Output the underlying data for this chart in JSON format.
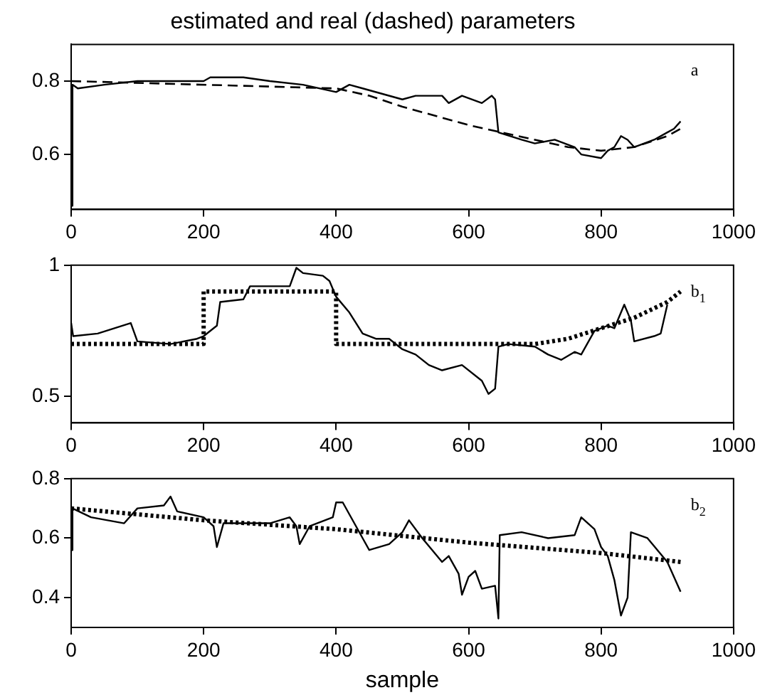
{
  "chart_data": [
    {
      "type": "line",
      "title": "estimated and real (dashed) parameters",
      "annotations": [
        "a"
      ],
      "xlim": [
        0,
        1000
      ],
      "xticks": [
        0,
        200,
        400,
        600,
        800,
        1000
      ],
      "ylim": [
        0.45,
        0.9
      ],
      "yticks": [
        0.6,
        0.8
      ],
      "grid": false,
      "legend": false,
      "series": [
        {
          "color": "#000000",
          "line_style": "solid",
          "x": [
            0,
            2,
            10,
            50,
            100,
            200,
            210,
            260,
            300,
            350,
            400,
            420,
            440,
            500,
            520,
            560,
            570,
            590,
            620,
            635,
            640,
            645,
            680,
            700,
            730,
            760,
            770,
            800,
            810,
            820,
            830,
            840,
            850,
            880,
            900,
            910,
            920
          ],
          "values": [
            0.46,
            0.79,
            0.78,
            0.79,
            0.8,
            0.8,
            0.81,
            0.81,
            0.8,
            0.79,
            0.77,
            0.79,
            0.78,
            0.75,
            0.76,
            0.76,
            0.74,
            0.76,
            0.74,
            0.76,
            0.75,
            0.66,
            0.64,
            0.63,
            0.64,
            0.62,
            0.6,
            0.59,
            0.61,
            0.62,
            0.65,
            0.64,
            0.62,
            0.64,
            0.66,
            0.67,
            0.69
          ]
        },
        {
          "color": "#000000",
          "line_style": "dashed",
          "x": [
            0,
            400,
            450,
            500,
            600,
            700,
            750,
            800,
            850,
            900,
            920
          ],
          "values": [
            0.8,
            0.78,
            0.76,
            0.73,
            0.68,
            0.64,
            0.62,
            0.61,
            0.62,
            0.65,
            0.67
          ]
        }
      ]
    },
    {
      "type": "line",
      "annotations": [
        "b$_{1}$"
      ],
      "xlim": [
        0,
        1000
      ],
      "xticks": [
        0,
        200,
        400,
        600,
        800,
        1000
      ],
      "ylim": [
        0.4,
        1
      ],
      "yticks": [
        0.5,
        1
      ],
      "grid": false,
      "legend": false,
      "series": [
        {
          "color": "#000000",
          "line_style": "solid",
          "x": [
            0,
            3,
            40,
            90,
            100,
            150,
            190,
            200,
            220,
            225,
            260,
            270,
            330,
            340,
            350,
            380,
            390,
            400,
            420,
            440,
            460,
            480,
            500,
            520,
            540,
            560,
            590,
            620,
            630,
            640,
            645,
            660,
            700,
            720,
            740,
            760,
            770,
            790,
            810,
            820,
            835,
            845,
            850,
            880,
            890,
            900
          ],
          "values": [
            0.78,
            0.73,
            0.74,
            0.78,
            0.71,
            0.7,
            0.72,
            0.73,
            0.77,
            0.86,
            0.87,
            0.92,
            0.92,
            0.99,
            0.97,
            0.96,
            0.94,
            0.88,
            0.82,
            0.74,
            0.72,
            0.72,
            0.68,
            0.66,
            0.62,
            0.6,
            0.62,
            0.56,
            0.51,
            0.53,
            0.69,
            0.7,
            0.69,
            0.66,
            0.64,
            0.67,
            0.66,
            0.75,
            0.77,
            0.76,
            0.85,
            0.79,
            0.71,
            0.73,
            0.74,
            0.85
          ]
        },
        {
          "color": "#000000",
          "line_style": "dotted",
          "x": [
            0,
            200,
            200,
            400,
            400,
            700,
            750,
            800,
            850,
            900,
            920
          ],
          "values": [
            0.7,
            0.7,
            0.9,
            0.9,
            0.7,
            0.7,
            0.72,
            0.76,
            0.8,
            0.86,
            0.9
          ]
        }
      ]
    },
    {
      "type": "line",
      "xlabel": "sample",
      "annotations": [
        "b$_{2}$"
      ],
      "xlim": [
        0,
        1000
      ],
      "xticks": [
        0,
        200,
        400,
        600,
        800,
        1000
      ],
      "ylim": [
        0.3,
        0.8
      ],
      "yticks": [
        0.4,
        0.6,
        0.8
      ],
      "grid": false,
      "legend": false,
      "series": [
        {
          "color": "#000000",
          "line_style": "solid",
          "x": [
            0,
            2,
            30,
            80,
            100,
            140,
            150,
            160,
            200,
            215,
            220,
            230,
            300,
            330,
            340,
            345,
            360,
            395,
            400,
            410,
            420,
            440,
            450,
            480,
            500,
            510,
            530,
            560,
            570,
            585,
            590,
            600,
            610,
            620,
            640,
            645,
            647,
            680,
            720,
            760,
            770,
            790,
            800,
            810,
            820,
            830,
            840,
            845,
            870,
            900,
            920
          ],
          "values": [
            0.56,
            0.7,
            0.67,
            0.65,
            0.7,
            0.71,
            0.74,
            0.69,
            0.67,
            0.64,
            0.57,
            0.65,
            0.65,
            0.67,
            0.64,
            0.58,
            0.64,
            0.67,
            0.72,
            0.72,
            0.68,
            0.6,
            0.56,
            0.58,
            0.62,
            0.66,
            0.6,
            0.52,
            0.54,
            0.48,
            0.41,
            0.47,
            0.49,
            0.43,
            0.44,
            0.33,
            0.61,
            0.62,
            0.6,
            0.61,
            0.67,
            0.63,
            0.57,
            0.54,
            0.46,
            0.34,
            0.4,
            0.62,
            0.6,
            0.52,
            0.42
          ]
        },
        {
          "color": "#000000",
          "line_style": "dotted",
          "x": [
            0,
            200,
            400,
            600,
            800,
            920
          ],
          "values": [
            0.7,
            0.66,
            0.63,
            0.585,
            0.55,
            0.52
          ]
        }
      ]
    }
  ]
}
